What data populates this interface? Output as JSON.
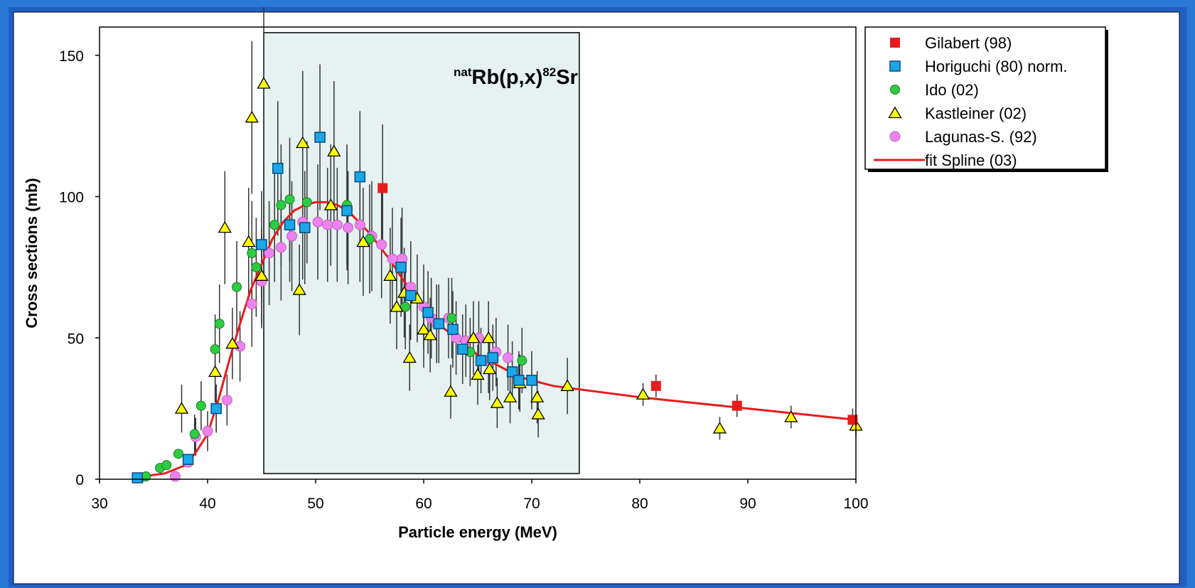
{
  "chart_data": {
    "type": "scatter",
    "title_parts": {
      "sup1": "nat",
      "main1": "Rb(p,x)",
      "sup2": "82",
      "main2": "Sr"
    },
    "xlabel": "Particle energy (MeV)",
    "ylabel": "Cross sections (mb)",
    "xlim": [
      30,
      100
    ],
    "ylim": [
      0,
      160
    ],
    "x_ticks": [
      "30",
      "40",
      "50",
      "60",
      "70",
      "80",
      "90",
      "100"
    ],
    "y_ticks": [
      "0",
      "50",
      "100",
      "150"
    ],
    "highlight_band": {
      "x_range": [
        45.2,
        74.4
      ],
      "y_range": [
        2,
        158
      ],
      "color": "#e6f2f2"
    },
    "legend_position": "top-right",
    "series": [
      {
        "name": "Gilabert (98)",
        "marker": "square-filled",
        "color": "#e81c1c",
        "points": [
          [
            56.2,
            103
          ],
          [
            81.5,
            33
          ],
          [
            89,
            26
          ],
          [
            99.7,
            21
          ]
        ]
      },
      {
        "name": "Horiguchi (80) norm.",
        "marker": "square-open",
        "color": "#19a7e8",
        "points": [
          [
            33.5,
            0.5
          ],
          [
            38.2,
            7
          ],
          [
            40.8,
            25
          ],
          [
            45,
            83
          ],
          [
            46.5,
            110
          ],
          [
            47.6,
            90
          ],
          [
            49,
            89
          ],
          [
            50.4,
            121
          ],
          [
            52.9,
            95
          ],
          [
            54.1,
            107
          ],
          [
            57.9,
            75
          ],
          [
            58.8,
            65
          ],
          [
            60.4,
            59
          ],
          [
            61.4,
            55
          ],
          [
            62.7,
            53
          ],
          [
            63.6,
            46
          ],
          [
            65.3,
            42
          ],
          [
            66.4,
            43
          ],
          [
            68.2,
            38
          ],
          [
            68.8,
            35
          ],
          [
            70,
            35
          ]
        ]
      },
      {
        "name": "Ido (02)",
        "marker": "circle-filled",
        "color": "#2ecc40",
        "points": [
          [
            33.8,
            0.5
          ],
          [
            34.3,
            1
          ],
          [
            35.6,
            4
          ],
          [
            36.2,
            5
          ],
          [
            37.3,
            9
          ],
          [
            38.8,
            16
          ],
          [
            39.4,
            26
          ],
          [
            40.7,
            46
          ],
          [
            41.1,
            55
          ],
          [
            42.7,
            68
          ],
          [
            44.1,
            80
          ],
          [
            44.5,
            75
          ],
          [
            46.2,
            90
          ],
          [
            46.8,
            97
          ],
          [
            47.6,
            99
          ],
          [
            49.2,
            98
          ],
          [
            52.9,
            97
          ],
          [
            55,
            85
          ],
          [
            58.3,
            61
          ],
          [
            62.6,
            57
          ],
          [
            64.3,
            45
          ],
          [
            69.1,
            42
          ]
        ]
      },
      {
        "name": "Kastleiner (02)",
        "marker": "triangle-open",
        "color": "#ffff00",
        "points": [
          [
            37.6,
            25
          ],
          [
            40.7,
            38
          ],
          [
            41.6,
            89
          ],
          [
            42.3,
            48
          ],
          [
            43.8,
            84
          ],
          [
            44.1,
            128
          ],
          [
            45,
            72
          ],
          [
            45.2,
            140
          ],
          [
            48.5,
            67
          ],
          [
            48.8,
            119
          ],
          [
            51.4,
            97
          ],
          [
            51.7,
            116
          ],
          [
            54.4,
            84
          ],
          [
            56.9,
            72
          ],
          [
            57.5,
            61
          ],
          [
            58.2,
            66
          ],
          [
            58.7,
            43
          ],
          [
            59.4,
            64
          ],
          [
            60,
            53
          ],
          [
            60.6,
            51
          ],
          [
            62.5,
            31
          ],
          [
            64.6,
            50
          ],
          [
            65,
            37
          ],
          [
            66,
            50
          ],
          [
            66.1,
            39
          ],
          [
            66.8,
            27
          ],
          [
            68,
            29
          ],
          [
            68.9,
            34
          ],
          [
            70.5,
            29
          ],
          [
            70.6,
            23
          ],
          [
            73.3,
            33
          ],
          [
            80.3,
            30
          ],
          [
            87.4,
            18
          ],
          [
            94,
            22
          ],
          [
            100,
            19
          ]
        ]
      },
      {
        "name": "Lagunas-S. (92)",
        "marker": "circle-pink",
        "color": "#ee82ee",
        "points": [
          [
            37,
            1
          ],
          [
            38.2,
            6
          ],
          [
            38.9,
            15
          ],
          [
            40,
            17
          ],
          [
            40.8,
            25
          ],
          [
            41.8,
            28
          ],
          [
            43,
            47
          ],
          [
            44.1,
            62
          ],
          [
            45,
            70
          ],
          [
            45.7,
            80
          ],
          [
            46.8,
            82
          ],
          [
            47.8,
            86
          ],
          [
            48.8,
            91
          ],
          [
            50.2,
            91
          ],
          [
            51.1,
            90
          ],
          [
            52,
            90
          ],
          [
            53,
            89
          ],
          [
            54.1,
            90
          ],
          [
            55.2,
            86
          ],
          [
            56.1,
            83
          ],
          [
            57.1,
            78
          ],
          [
            58,
            78
          ],
          [
            58.8,
            68
          ],
          [
            60,
            61
          ],
          [
            60.7,
            57
          ],
          [
            61.2,
            55
          ],
          [
            62.3,
            57
          ],
          [
            63,
            50
          ],
          [
            63.9,
            49
          ],
          [
            65.1,
            50
          ],
          [
            66,
            42
          ],
          [
            66.7,
            45
          ],
          [
            67.8,
            43
          ]
        ]
      },
      {
        "name": "fit Spline (03)",
        "marker": "line",
        "color": "#e81c1c",
        "points": [
          [
            34,
            1
          ],
          [
            36,
            2
          ],
          [
            38,
            5
          ],
          [
            39,
            10
          ],
          [
            40,
            16
          ],
          [
            41,
            28
          ],
          [
            42,
            42
          ],
          [
            43,
            55
          ],
          [
            44,
            67
          ],
          [
            45,
            76
          ],
          [
            46,
            85
          ],
          [
            47,
            91
          ],
          [
            48,
            95
          ],
          [
            49,
            97
          ],
          [
            50,
            98
          ],
          [
            51,
            98
          ],
          [
            52,
            97
          ],
          [
            53,
            95
          ],
          [
            54,
            91
          ],
          [
            55,
            87
          ],
          [
            56,
            82
          ],
          [
            57,
            77
          ],
          [
            58,
            71
          ],
          [
            59,
            66
          ],
          [
            60,
            60
          ],
          [
            61,
            56
          ],
          [
            62,
            53
          ],
          [
            63,
            50
          ],
          [
            64,
            47
          ],
          [
            65,
            44
          ],
          [
            66,
            42
          ],
          [
            67,
            40
          ],
          [
            68,
            38
          ],
          [
            69,
            36
          ],
          [
            70,
            35
          ],
          [
            72,
            33
          ],
          [
            74,
            32
          ],
          [
            80,
            29
          ],
          [
            90,
            25
          ],
          [
            100,
            21
          ]
        ]
      }
    ]
  }
}
